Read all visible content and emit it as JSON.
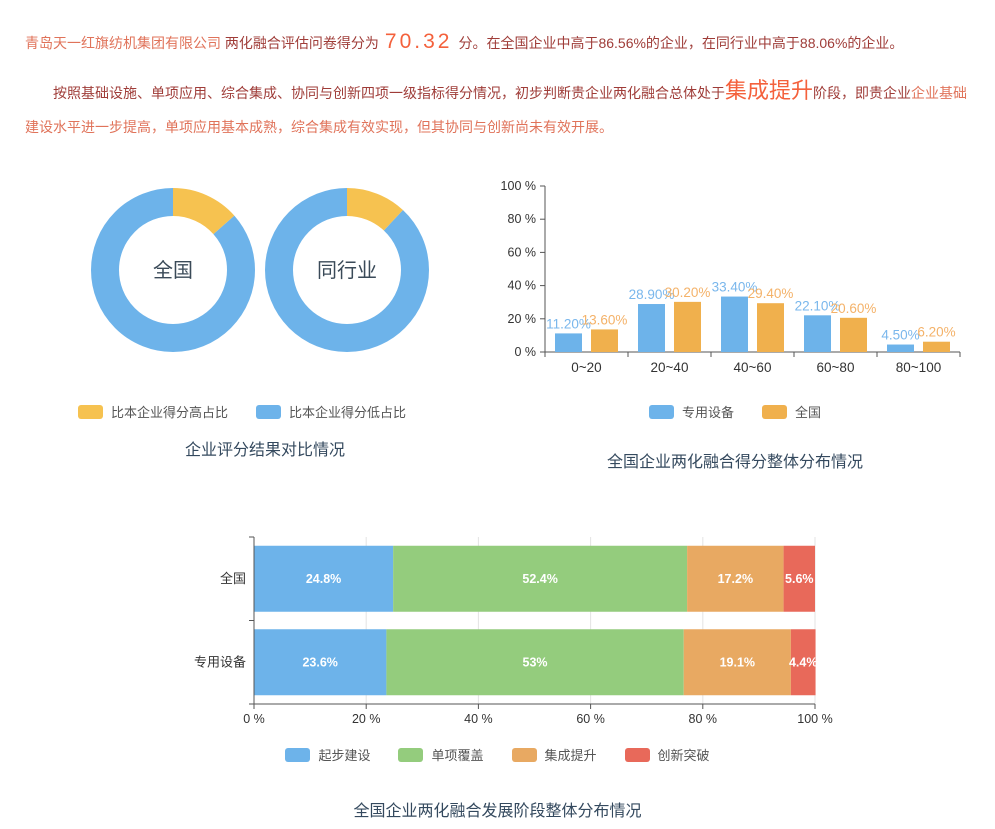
{
  "intro": {
    "company": "青岛天一红旗纺机集团有限公司",
    "score_label": "两化融合评估问卷得分为",
    "score": "70.32",
    "score_suffix": "分。在全国企业中高于86.56%的企业，在同行业中高于88.06%的企业。"
  },
  "stage": {
    "lead": "按照基础设施、单项应用、综合集成、协同与创新四项一级指标得分情况，初步判断贵企业两化融合总体处于",
    "stage_name": "集成提升",
    "mid": "阶段，即贵企业",
    "tail": "企业基础建设水平进一步提高，单项应用基本成熟，综合集成有效实现，但其协同与创新尚未有效开展。"
  },
  "colors": {
    "blue": "#6db3ea",
    "yellow": "#f6c250",
    "gold": "#f0b04d",
    "gold_label": "#f4b269",
    "blue_label": "#7ab7ec",
    "green": "#94cc7d",
    "orange": "#e8a962",
    "red": "#e8695a",
    "title": "#34495e",
    "axis_line": "#555555",
    "axis_text": "#333333",
    "grid": "#e3e3e3",
    "dark_red_text": "#9f3c38",
    "coral_text": "#e0735a",
    "highlight_orange": "#f4613c"
  },
  "chart_data": [
    {
      "type": "pie",
      "variant": "donut-pair",
      "title": "企业评分结果对比情况",
      "legend": [
        {
          "label": "比本企业得分高占比",
          "color_key": "yellow"
        },
        {
          "label": "比本企业得分低占比",
          "color_key": "blue"
        }
      ],
      "donuts": [
        {
          "label": "全国",
          "higher_pct": 13.44,
          "lower_pct": 86.56
        },
        {
          "label": "同行业",
          "higher_pct": 11.94,
          "lower_pct": 88.06
        }
      ]
    },
    {
      "type": "bar",
      "title": "全国企业两化融合得分整体分布情况",
      "categories": [
        "0~20",
        "20~40",
        "40~60",
        "60~80",
        "80~100"
      ],
      "series": [
        {
          "name": "专用设备",
          "color_key": "blue",
          "label_color_key": "blue_label",
          "values": [
            11.2,
            28.9,
            33.4,
            22.1,
            4.5
          ],
          "labels": [
            "11.20%",
            "28.90%",
            "33.40%",
            "22.10%",
            "4.50%"
          ]
        },
        {
          "name": "全国",
          "color_key": "gold",
          "label_color_key": "gold_label",
          "values": [
            13.6,
            30.2,
            29.4,
            20.6,
            6.2
          ],
          "labels": [
            "13.60%",
            "30.20%",
            "29.40%",
            "20.60%",
            "6.20%"
          ]
        }
      ],
      "ylim": [
        0,
        100
      ],
      "yticks": [
        "0 %",
        "20 %",
        "40 %",
        "60 %",
        "80 %",
        "100 %"
      ],
      "grid": false,
      "legend_position": "bottom"
    },
    {
      "type": "bar",
      "variant": "stacked-horizontal",
      "title": "全国企业两化融合发展阶段整体分布情况",
      "categories": [
        "全国",
        "专用设备"
      ],
      "series": [
        {
          "name": "起步建设",
          "color_key": "blue",
          "values": [
            24.8,
            23.6
          ],
          "labels": [
            "24.8%",
            "23.6%"
          ]
        },
        {
          "name": "单项覆盖",
          "color_key": "green",
          "values": [
            52.4,
            53
          ],
          "labels": [
            "52.4%",
            "53%"
          ]
        },
        {
          "name": "集成提升",
          "color_key": "orange",
          "values": [
            17.2,
            19.1
          ],
          "labels": [
            "17.2%",
            "19.1%"
          ]
        },
        {
          "name": "创新突破",
          "color_key": "red",
          "values": [
            5.6,
            4.4
          ],
          "labels": [
            "5.6%",
            "4.4%"
          ]
        }
      ],
      "xlim": [
        0,
        100
      ],
      "xticks": [
        "0 %",
        "20 %",
        "40 %",
        "60 %",
        "80 %",
        "100 %"
      ],
      "grid": true,
      "legend_position": "bottom"
    }
  ]
}
